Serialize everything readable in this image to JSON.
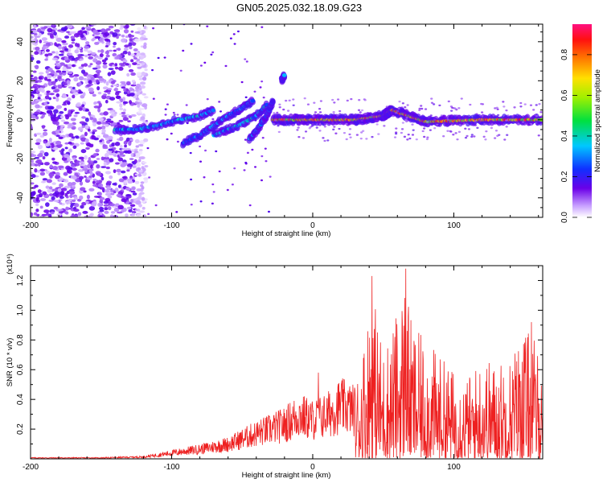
{
  "title": "GN05.2025.032.18.09.G23",
  "colors": {
    "snr_line": "#ee2020",
    "frame": "#000000"
  },
  "chart_data": [
    {
      "type": "heatmap",
      "name": "spectrogram",
      "xlabel": "Height of straight line (km)",
      "ylabel": "Frequency (Hz)",
      "xlim": [
        -200,
        163
      ],
      "ylim": [
        -50,
        49
      ],
      "xticks": [
        -200,
        -100,
        0,
        100
      ],
      "xtick_labels": [
        "-200",
        "-100",
        "0",
        "100"
      ],
      "yticks": [
        -40,
        -20,
        0,
        20,
        40
      ],
      "ytick_labels": [
        "-40",
        "-20",
        "0",
        "20",
        "40"
      ],
      "colorbar": {
        "label": "Normalized spectral amplitude",
        "range": [
          0,
          0.95
        ],
        "ticks": [
          0.0,
          0.2,
          0.4,
          0.6,
          0.8
        ],
        "tick_labels": [
          "0.0",
          "0.2",
          "0.4",
          "0.6",
          "0.8"
        ],
        "colormap": "rainbow (white-violet-blue-cyan-green-yellow-orange-red-magenta)"
      },
      "features": [
        {
          "name": "noise-region",
          "x_range": [
            -200,
            -118
          ],
          "freq_range": [
            -50,
            49
          ],
          "amplitude": 0.1
        },
        {
          "name": "track-1",
          "x": [
            -140,
            -125,
            -110,
            -95,
            -80,
            -70
          ],
          "freq": [
            -5,
            -5,
            -3,
            0,
            2,
            5
          ],
          "amplitude": 0.35
        },
        {
          "name": "track-2",
          "x": [
            -92,
            -80,
            -70,
            -60,
            -50,
            -42
          ],
          "freq": [
            -12,
            -8,
            -3,
            2,
            6,
            10
          ],
          "amplitude": 0.3
        },
        {
          "name": "track-3",
          "x": [
            -70,
            -60,
            -50,
            -40,
            -32
          ],
          "freq": [
            -8,
            -5,
            -2,
            2,
            8
          ],
          "amplitude": 0.35
        },
        {
          "name": "track-4",
          "x": [
            -45,
            -38,
            -32,
            -28
          ],
          "freq": [
            -10,
            -4,
            3,
            10
          ],
          "amplitude": 0.3
        },
        {
          "name": "main-carrier",
          "x": [
            -28,
            0,
            30,
            50,
            56,
            80,
            120,
            163
          ],
          "freq": [
            0,
            0,
            0,
            2,
            5,
            -1,
            0,
            0
          ],
          "amplitude": 0.9
        },
        {
          "name": "spur-1",
          "x": [
            -22,
            -20
          ],
          "freq": [
            20,
            23
          ],
          "amplitude": 0.3
        }
      ]
    },
    {
      "type": "line",
      "name": "snr",
      "xlabel": "Height of straight line (km)",
      "ylabel": "SNR (10 * v/v)",
      "y_multiplier": "(x10⁴)",
      "xlim": [
        -200,
        163
      ],
      "ylim": [
        0,
        1.3
      ],
      "xticks": [
        -200,
        -100,
        0,
        100
      ],
      "xtick_labels": [
        "-200",
        "-100",
        "0",
        "100"
      ],
      "yticks": [
        0.2,
        0.4,
        0.6,
        0.8,
        1.0,
        1.2
      ],
      "ytick_labels": [
        "0.2",
        "0.4",
        "0.6",
        "0.8",
        "1.0",
        "1.2"
      ],
      "x": [
        -200,
        -150,
        -120,
        -100,
        -80,
        -60,
        -40,
        -20,
        -10,
        0,
        10,
        20,
        30,
        38,
        42,
        45,
        50,
        60,
        66,
        70,
        80,
        90,
        100,
        110,
        120,
        130,
        140,
        150,
        158,
        163
      ],
      "envelope": [
        0.01,
        0.01,
        0.02,
        0.06,
        0.1,
        0.15,
        0.26,
        0.35,
        0.45,
        0.4,
        0.45,
        0.55,
        0.5,
        0.9,
        1.22,
        1.0,
        0.75,
        1.0,
        1.28,
        0.9,
        0.8,
        0.7,
        0.6,
        0.55,
        0.7,
        0.65,
        0.7,
        0.9,
        0.8,
        0.6
      ],
      "peaks": [
        {
          "x": 42,
          "y": 1.23
        },
        {
          "x": 66,
          "y": 1.28
        },
        {
          "x": 4,
          "y": 0.58
        },
        {
          "x": 155,
          "y": 0.92
        }
      ]
    }
  ]
}
